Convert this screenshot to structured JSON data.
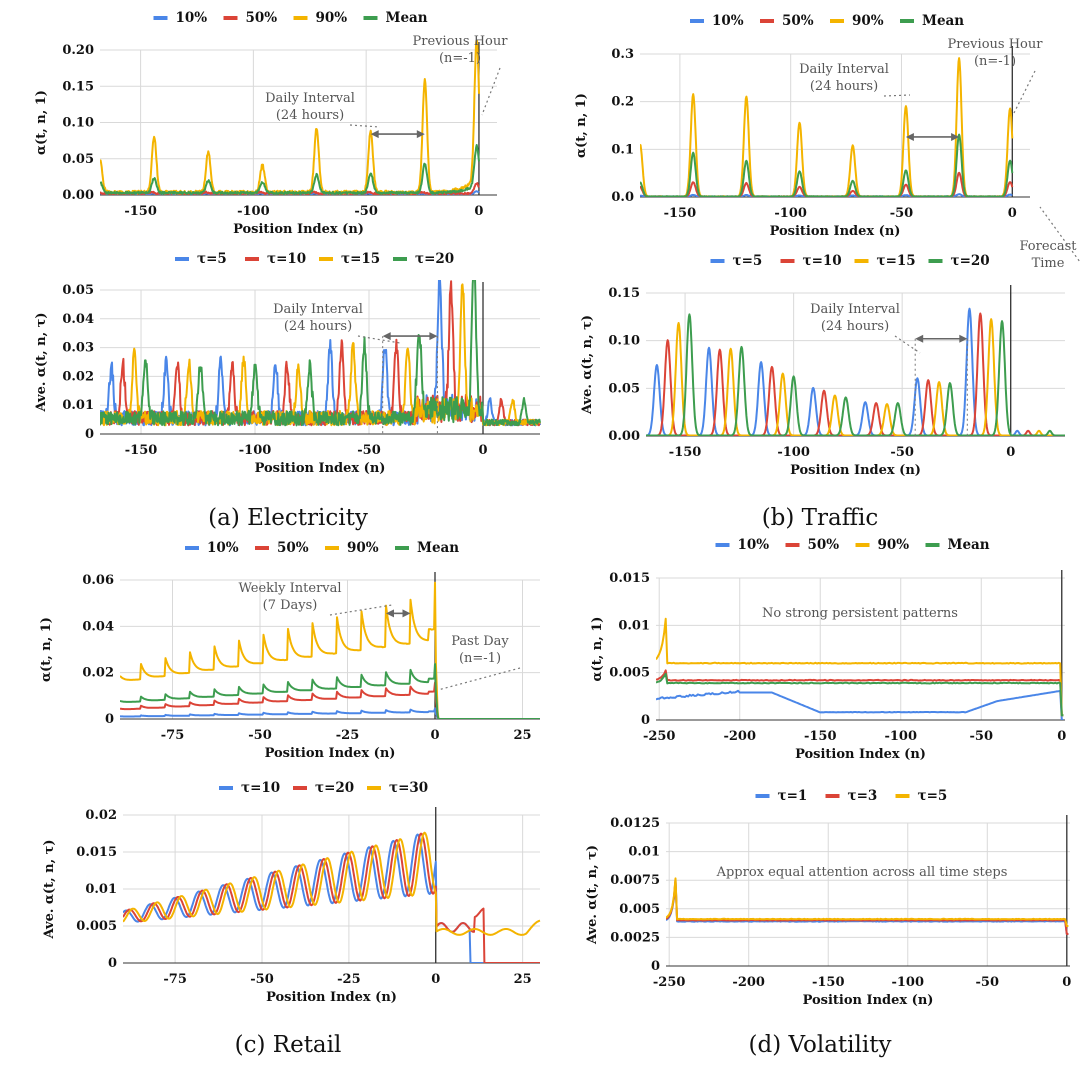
{
  "figure": {
    "captions": [
      "(a) Electricity",
      "(b) Traffic",
      "(c) Retail",
      "(d) Volatility"
    ]
  },
  "colors": {
    "blue": "#4a86e8",
    "red": "#db4437",
    "yellow": "#f4b400",
    "green": "#3d9d4f"
  },
  "chart_data": [
    {
      "id": "elec_top",
      "type": "line",
      "panel": "a",
      "xlabel": "Position Index (n)",
      "ylabel": "α(t, n, 1)",
      "xlim": [
        -168,
        8
      ],
      "ylim": [
        0,
        0.2
      ],
      "xticks": [
        -150,
        -100,
        -50,
        0
      ],
      "xtick_labels": [
        "-150",
        "-100",
        "-50",
        "0"
      ],
      "yticks": [
        0,
        0.05,
        0.1,
        0.15,
        0.2
      ],
      "ytick_labels": [
        "0.00",
        "0.05",
        "0.10",
        "0.15",
        "0.20"
      ],
      "legend": [
        {
          "name": "10%",
          "color": "blue"
        },
        {
          "name": "50%",
          "color": "red"
        },
        {
          "name": "90%",
          "color": "yellow"
        },
        {
          "name": "Mean",
          "color": "green"
        }
      ],
      "series": [
        {
          "name": "10%",
          "color": "blue",
          "base": 0.001,
          "period": 24,
          "phase": 0,
          "width": 1,
          "amps": [
            0.001
          ],
          "end": [
            {
              "n": -1,
              "v": 0.003
            }
          ]
        },
        {
          "name": "50%",
          "color": "red",
          "base": 0.002,
          "period": 24,
          "phase": 0,
          "width": 1,
          "amps": [
            0.002
          ],
          "end": [
            {
              "n": -1,
              "v": 0.012
            }
          ]
        },
        {
          "name": "90%",
          "color": "yellow",
          "base": 0.004,
          "period": 24,
          "phase": 0,
          "width": 1.2,
          "peaks": [
            {
              "n": -168,
              "v": 0.045
            },
            {
              "n": -144,
              "v": 0.077
            },
            {
              "n": -120,
              "v": 0.055
            },
            {
              "n": -96,
              "v": 0.037
            },
            {
              "n": -72,
              "v": 0.088
            },
            {
              "n": -48,
              "v": 0.085
            },
            {
              "n": -24,
              "v": 0.155
            },
            {
              "n": -1,
              "v": 0.195
            }
          ],
          "ramp": 0.03
        },
        {
          "name": "Mean",
          "color": "green",
          "base": 0.003,
          "period": 24,
          "phase": 0,
          "width": 1.2,
          "peaks": [
            {
              "n": -168,
              "v": 0.015
            },
            {
              "n": -144,
              "v": 0.02
            },
            {
              "n": -120,
              "v": 0.017
            },
            {
              "n": -96,
              "v": 0.015
            },
            {
              "n": -72,
              "v": 0.025
            },
            {
              "n": -48,
              "v": 0.027
            },
            {
              "n": -24,
              "v": 0.04
            },
            {
              "n": -1,
              "v": 0.055
            }
          ],
          "ramp": 0.018
        }
      ],
      "annotations": [
        {
          "lines": [
            "Daily Interval",
            "(24 hours)"
          ]
        },
        {
          "lines": [
            "Previous Hour",
            "(n=-1)"
          ]
        }
      ],
      "interval_arrow": [
        -48,
        -24
      ]
    },
    {
      "id": "elec_bot",
      "type": "line",
      "panel": "a",
      "xlabel": "Position Index (n)",
      "ylabel": "Ave. α(t, n, τ)",
      "xlim": [
        -168,
        25
      ],
      "ylim": [
        0,
        0.05
      ],
      "xticks": [
        -150,
        -100,
        -50,
        0
      ],
      "xtick_labels": [
        "-150",
        "-100",
        "-50",
        "0"
      ],
      "yticks": [
        0,
        0.01,
        0.02,
        0.03,
        0.04,
        0.05
      ],
      "ytick_labels": [
        "0",
        "0.01",
        "0.02",
        "0.03",
        "0.04",
        "0.05"
      ],
      "legend": [
        {
          "name": "τ=5",
          "color": "blue"
        },
        {
          "name": "τ=10",
          "color": "red"
        },
        {
          "name": "τ=15",
          "color": "yellow"
        },
        {
          "name": "τ=20",
          "color": "green"
        }
      ],
      "series": [
        {
          "name": "τ=5",
          "color": "blue",
          "shift": 5,
          "peakvals": [
            0.018,
            0.02,
            0.02,
            0.019,
            0.026,
            0.026,
            0.045
          ]
        },
        {
          "name": "τ=10",
          "color": "red",
          "shift": 10,
          "peakvals": [
            0.019,
            0.019,
            0.019,
            0.018,
            0.026,
            0.026,
            0.043
          ]
        },
        {
          "name": "τ=15",
          "color": "yellow",
          "shift": 15,
          "peakvals": [
            0.022,
            0.02,
            0.02,
            0.018,
            0.026,
            0.026,
            0.043
          ]
        },
        {
          "name": "τ=20",
          "color": "green",
          "shift": 20,
          "peakvals": [
            0.02,
            0.019,
            0.019,
            0.018,
            0.026,
            0.027,
            0.05
          ]
        }
      ],
      "annotations": [
        {
          "lines": [
            "Daily Interval",
            "(24 hours)"
          ]
        }
      ],
      "interval_arrow": [
        -44,
        -20
      ]
    },
    {
      "id": "traffic_top",
      "type": "line",
      "panel": "b",
      "xlabel": "Position Index (n)",
      "ylabel": "α(t, n, 1)",
      "xlim": [
        -168,
        8
      ],
      "ylim": [
        0,
        0.3
      ],
      "xticks": [
        -150,
        -100,
        -50,
        0
      ],
      "xtick_labels": [
        "-150",
        "-100",
        "-50",
        "0"
      ],
      "yticks": [
        0,
        0.1,
        0.2,
        0.3
      ],
      "ytick_labels": [
        "0.0",
        "0.1",
        "0.2",
        "0.3"
      ],
      "legend": [
        {
          "name": "10%",
          "color": "blue"
        },
        {
          "name": "50%",
          "color": "red"
        },
        {
          "name": "90%",
          "color": "yellow"
        },
        {
          "name": "Mean",
          "color": "green"
        }
      ],
      "series": [
        {
          "name": "10%",
          "color": "blue",
          "peaks": [
            {
              "n": -168,
              "v": 0.002
            },
            {
              "n": -144,
              "v": 0.003
            },
            {
              "n": -120,
              "v": 0.003
            },
            {
              "n": -96,
              "v": 0.002
            },
            {
              "n": -72,
              "v": 0.002
            },
            {
              "n": -48,
              "v": 0.003
            },
            {
              "n": -24,
              "v": 0.005
            },
            {
              "n": -1,
              "v": 0.004
            }
          ]
        },
        {
          "name": "50%",
          "color": "red",
          "peaks": [
            {
              "n": -168,
              "v": 0.02
            },
            {
              "n": -144,
              "v": 0.03
            },
            {
              "n": -120,
              "v": 0.028
            },
            {
              "n": -96,
              "v": 0.02
            },
            {
              "n": -72,
              "v": 0.012
            },
            {
              "n": -48,
              "v": 0.025
            },
            {
              "n": -24,
              "v": 0.05
            },
            {
              "n": -1,
              "v": 0.03
            }
          ]
        },
        {
          "name": "90%",
          "color": "yellow",
          "peaks": [
            {
              "n": -168,
              "v": 0.11
            },
            {
              "n": -144,
              "v": 0.215
            },
            {
              "n": -120,
              "v": 0.21
            },
            {
              "n": -96,
              "v": 0.155
            },
            {
              "n": -72,
              "v": 0.107
            },
            {
              "n": -48,
              "v": 0.19
            },
            {
              "n": -24,
              "v": 0.29
            },
            {
              "n": -1,
              "v": 0.185
            }
          ]
        },
        {
          "name": "Mean",
          "color": "green",
          "peaks": [
            {
              "n": -168,
              "v": 0.03
            },
            {
              "n": -144,
              "v": 0.092
            },
            {
              "n": -120,
              "v": 0.075
            },
            {
              "n": -96,
              "v": 0.053
            },
            {
              "n": -72,
              "v": 0.033
            },
            {
              "n": -48,
              "v": 0.055
            },
            {
              "n": -24,
              "v": 0.13
            },
            {
              "n": -1,
              "v": 0.075
            }
          ]
        }
      ],
      "annotations": [
        {
          "lines": [
            "Daily Interval",
            "(24 hours)"
          ]
        },
        {
          "lines": [
            "Previous Hour",
            "(n=-1)"
          ]
        },
        {
          "lines": [
            "Forecast",
            "Time"
          ]
        }
      ],
      "interval_arrow": [
        -48,
        -24
      ]
    },
    {
      "id": "traffic_bot",
      "type": "line",
      "panel": "b",
      "xlabel": "Position Index (n)",
      "ylabel": "Ave. α(t, n, τ)",
      "xlim": [
        -168,
        25
      ],
      "ylim": [
        0,
        0.15
      ],
      "xticks": [
        -150,
        -100,
        -50,
        0
      ],
      "xtick_labels": [
        "-150",
        "-100",
        "-50",
        "0"
      ],
      "yticks": [
        0,
        0.05,
        0.1,
        0.15
      ],
      "ytick_labels": [
        "0.00",
        "0.05",
        "0.10",
        "0.15"
      ],
      "legend": [
        {
          "name": "τ=5",
          "color": "blue"
        },
        {
          "name": "τ=10",
          "color": "red"
        },
        {
          "name": "τ=15",
          "color": "yellow"
        },
        {
          "name": "τ=20",
          "color": "green"
        }
      ],
      "series": [
        {
          "name": "τ=5",
          "color": "blue",
          "shift": 5,
          "peakvals": [
            0.074,
            0.092,
            0.077,
            0.05,
            0.035,
            0.06,
            0.133
          ]
        },
        {
          "name": "τ=10",
          "color": "red",
          "shift": 10,
          "peakvals": [
            0.1,
            0.09,
            0.072,
            0.047,
            0.034,
            0.058,
            0.128
          ]
        },
        {
          "name": "τ=15",
          "color": "yellow",
          "shift": 15,
          "peakvals": [
            0.118,
            0.091,
            0.065,
            0.042,
            0.033,
            0.056,
            0.122
          ]
        },
        {
          "name": "τ=20",
          "color": "green",
          "shift": 20,
          "peakvals": [
            0.127,
            0.093,
            0.062,
            0.04,
            0.034,
            0.055,
            0.12
          ]
        }
      ],
      "annotations": [
        {
          "lines": [
            "Daily Interval",
            "(24 hours)"
          ]
        }
      ],
      "interval_arrow": [
        -44,
        -20
      ]
    },
    {
      "id": "retail_top",
      "type": "line",
      "panel": "c",
      "xlabel": "Position Index (n)",
      "ylabel": "α(t, n, 1)",
      "xlim": [
        -90,
        30
      ],
      "ylim": [
        0,
        0.06
      ],
      "xticks": [
        -75,
        -50,
        -25,
        0,
        25
      ],
      "xtick_labels": [
        "-75",
        "-50",
        "-25",
        "0",
        "25"
      ],
      "yticks": [
        0,
        0.02,
        0.04,
        0.06
      ],
      "ytick_labels": [
        "0",
        "0.02",
        "0.04",
        "0.06"
      ],
      "legend": [
        {
          "name": "10%",
          "color": "blue"
        },
        {
          "name": "50%",
          "color": "red"
        },
        {
          "name": "90%",
          "color": "yellow"
        },
        {
          "name": "Mean",
          "color": "green"
        }
      ],
      "series": [
        {
          "name": "10%",
          "color": "blue",
          "start": 0.001,
          "endv": 0.003,
          "spike": 0.001
        },
        {
          "name": "50%",
          "color": "red",
          "start": 0.004,
          "endv": 0.011,
          "spike": 0.003
        },
        {
          "name": "90%",
          "color": "yellow",
          "start": 0.016,
          "endv": 0.034,
          "spike": 0.016
        },
        {
          "name": "Mean",
          "color": "green",
          "start": 0.007,
          "endv": 0.016,
          "spike": 0.005
        }
      ],
      "annotations": [
        {
          "lines": [
            "Weekly Interval",
            "(7 Days)"
          ]
        },
        {
          "lines": [
            "Past Day",
            "(n=-1)"
          ]
        }
      ],
      "interval_arrow": [
        -14,
        -7
      ]
    },
    {
      "id": "retail_bot",
      "type": "line",
      "panel": "c",
      "xlabel": "Position Index (n)",
      "ylabel": "Ave. α(t, n, τ)",
      "xlim": [
        -90,
        30
      ],
      "ylim": [
        0,
        0.02
      ],
      "xticks": [
        -75,
        -50,
        -25,
        0,
        25
      ],
      "xtick_labels": [
        "-75",
        "-50",
        "-25",
        "0",
        "25"
      ],
      "yticks": [
        0,
        0.005,
        0.01,
        0.015,
        0.02
      ],
      "ytick_labels": [
        "0",
        "0.005",
        "0.01",
        "0.015",
        "0.02"
      ],
      "legend": [
        {
          "name": "τ=10",
          "color": "blue"
        },
        {
          "name": "τ=20",
          "color": "red"
        },
        {
          "name": "τ=30",
          "color": "yellow"
        }
      ],
      "series": [
        {
          "name": "τ=10",
          "color": "blue",
          "shift": 0,
          "cut": 10
        },
        {
          "name": "τ=20",
          "color": "red",
          "shift": 1,
          "cut": 14
        },
        {
          "name": "τ=30",
          "color": "yellow",
          "shift": 2,
          "cut": 31
        }
      ]
    },
    {
      "id": "vol_top",
      "type": "line",
      "panel": "d",
      "xlabel": "Position Index (n)",
      "ylabel": "α(t, n, 1)",
      "xlim": [
        -252,
        2
      ],
      "ylim": [
        0,
        0.015
      ],
      "xticks": [
        -250,
        -200,
        -150,
        -100,
        -50,
        0
      ],
      "xtick_labels": [
        "-250",
        "-200",
        "-150",
        "-100",
        "-50",
        "0"
      ],
      "yticks": [
        0,
        0.005,
        0.01,
        0.015
      ],
      "ytick_labels": [
        "0",
        "0.005",
        "0.01",
        "0.015"
      ],
      "legend": [
        {
          "name": "10%",
          "color": "blue"
        },
        {
          "name": "50%",
          "color": "red"
        },
        {
          "name": "90%",
          "color": "yellow"
        },
        {
          "name": "Mean",
          "color": "green"
        }
      ],
      "series": [
        {
          "name": "10%",
          "color": "blue"
        },
        {
          "name": "50%",
          "color": "red",
          "level": 0.0042
        },
        {
          "name": "90%",
          "color": "yellow",
          "level": 0.006
        },
        {
          "name": "Mean",
          "color": "green",
          "level": 0.0039
        }
      ],
      "annotations": [
        {
          "lines": [
            "No strong persistent patterns"
          ]
        }
      ]
    },
    {
      "id": "vol_bot",
      "type": "line",
      "panel": "d",
      "xlabel": "Position Index (n)",
      "ylabel": "Ave. α(t, n, τ)",
      "xlim": [
        -252,
        2
      ],
      "ylim": [
        0,
        0.0125
      ],
      "xticks": [
        -250,
        -200,
        -150,
        -100,
        -50,
        0
      ],
      "xtick_labels": [
        "-250",
        "-200",
        "-150",
        "-100",
        "-50",
        "0"
      ],
      "yticks": [
        0,
        0.0025,
        0.005,
        0.0075,
        0.01,
        0.0125
      ],
      "ytick_labels": [
        "0",
        "0.0025",
        "0.005",
        "0.0075",
        "0.01",
        "0.0125"
      ],
      "legend": [
        {
          "name": "τ=1",
          "color": "blue"
        },
        {
          "name": "τ=3",
          "color": "red"
        },
        {
          "name": "τ=5",
          "color": "yellow"
        }
      ],
      "series": [
        {
          "name": "τ=1",
          "color": "blue",
          "level": 0.0039
        },
        {
          "name": "τ=3",
          "color": "red",
          "level": 0.004
        },
        {
          "name": "τ=5",
          "color": "yellow",
          "level": 0.0041
        }
      ],
      "annotations": [
        {
          "lines": [
            "Approx  equal attention across all time steps"
          ]
        }
      ]
    }
  ]
}
